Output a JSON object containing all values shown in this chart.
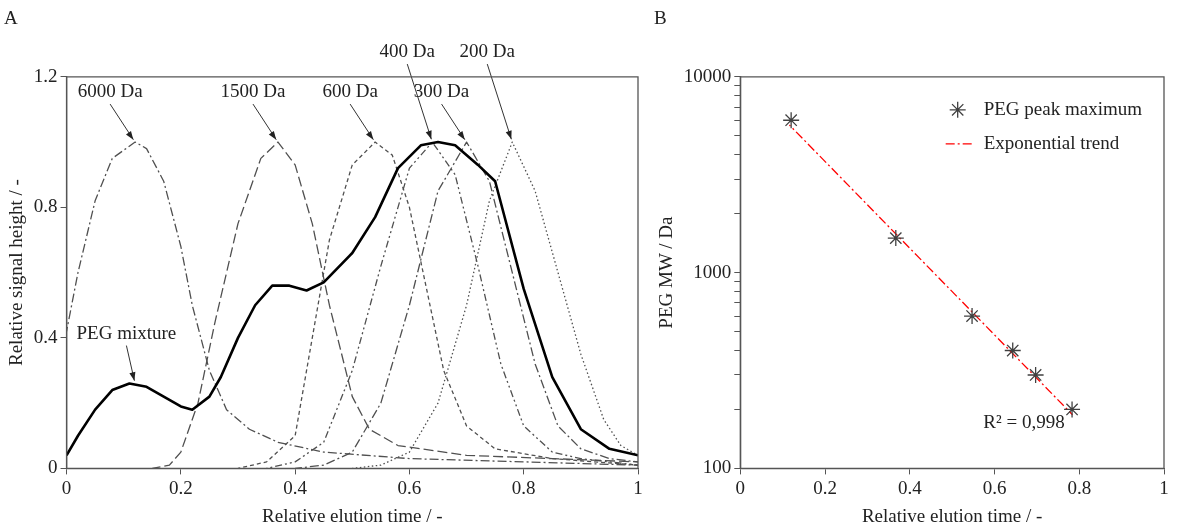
{
  "chart_data": [
    {
      "type": "line",
      "title": "A",
      "xlabel": "Relative elution time / -",
      "ylabel": "Relative signal height / -",
      "xlim": [
        0,
        1
      ],
      "xticks": [
        0,
        0.2,
        0.4,
        0.6,
        0.8,
        1
      ],
      "ylim": [
        0,
        1.2
      ],
      "yticks": [
        0,
        0.4,
        0.8,
        1.2
      ],
      "grid": false,
      "legend": false,
      "marker": "none",
      "series": [
        {
          "color": "#000000",
          "line_style": "solid",
          "x": [
            0,
            0.02,
            0.05,
            0.08,
            0.11,
            0.14,
            0.17,
            0.2,
            0.22,
            0.25,
            0.27,
            0.3,
            0.33,
            0.36,
            0.39,
            0.42,
            0.45,
            0.5,
            0.54,
            0.58,
            0.62,
            0.65,
            0.68,
            0.72,
            0.75,
            0.8,
            0.85,
            0.9,
            0.95,
            1
          ],
          "values": [
            0.04,
            0.1,
            0.18,
            0.24,
            0.26,
            0.25,
            0.22,
            0.19,
            0.18,
            0.22,
            0.28,
            0.4,
            0.5,
            0.56,
            0.56,
            0.545,
            0.57,
            0.66,
            0.77,
            0.92,
            0.99,
            1.0,
            0.99,
            0.93,
            0.88,
            0.55,
            0.28,
            0.12,
            0.06,
            0.04
          ]
        },
        {
          "color": "#505050",
          "line_style": "dashed",
          "x": [
            0,
            0.02,
            0.05,
            0.08,
            0.12,
            0.14,
            0.17,
            0.2,
            0.22,
            0.25,
            0.28,
            0.32,
            0.37,
            0.45,
            0.6,
            0.8,
            1
          ],
          "values": [
            0.42,
            0.6,
            0.82,
            0.95,
            1.0,
            0.98,
            0.88,
            0.68,
            0.5,
            0.3,
            0.18,
            0.12,
            0.08,
            0.05,
            0.03,
            0.02,
            0.01
          ]
        },
        {
          "color": "#505050",
          "line_style": "dashed",
          "x": [
            0.15,
            0.18,
            0.2,
            0.23,
            0.26,
            0.3,
            0.34,
            0.37,
            0.4,
            0.43,
            0.46,
            0.5,
            0.53,
            0.58,
            0.7,
            0.85,
            1
          ],
          "values": [
            0,
            0.01,
            0.05,
            0.2,
            0.45,
            0.75,
            0.95,
            1.0,
            0.93,
            0.75,
            0.5,
            0.22,
            0.12,
            0.07,
            0.04,
            0.03,
            0.02
          ]
        },
        {
          "color": "#505050",
          "line_style": "dashed",
          "x": [
            0.3,
            0.35,
            0.4,
            0.43,
            0.46,
            0.5,
            0.54,
            0.57,
            0.6,
            0.63,
            0.66,
            0.7,
            0.75,
            0.85,
            1
          ],
          "values": [
            0,
            0.02,
            0.1,
            0.4,
            0.7,
            0.93,
            1.0,
            0.96,
            0.8,
            0.55,
            0.3,
            0.13,
            0.06,
            0.03,
            0.01
          ]
        },
        {
          "color": "#505050",
          "line_style": "dashed",
          "x": [
            0.35,
            0.4,
            0.45,
            0.5,
            0.55,
            0.6,
            0.64,
            0.68,
            0.72,
            0.76,
            0.8,
            0.85,
            0.9,
            1
          ],
          "values": [
            0,
            0.02,
            0.08,
            0.3,
            0.62,
            0.92,
            1.0,
            0.9,
            0.62,
            0.32,
            0.13,
            0.05,
            0.03,
            0.01
          ]
        },
        {
          "color": "#505050",
          "line_style": "dashed",
          "x": [
            0.4,
            0.45,
            0.5,
            0.55,
            0.6,
            0.65,
            0.7,
            0.74,
            0.78,
            0.82,
            0.86,
            0.9,
            0.95,
            1
          ],
          "values": [
            0,
            0.01,
            0.05,
            0.2,
            0.5,
            0.85,
            1.0,
            0.88,
            0.6,
            0.32,
            0.13,
            0.06,
            0.03,
            0.02
          ]
        },
        {
          "color": "#505050",
          "line_style": "dotted",
          "x": [
            0.5,
            0.55,
            0.6,
            0.65,
            0.7,
            0.74,
            0.78,
            0.82,
            0.86,
            0.9,
            0.94,
            0.97,
            1
          ],
          "values": [
            0,
            0.01,
            0.05,
            0.2,
            0.5,
            0.82,
            1.0,
            0.85,
            0.6,
            0.35,
            0.15,
            0.07,
            0.04
          ]
        }
      ],
      "annotations": [
        {
          "text": "6000 Da",
          "x": 0.12,
          "y": 1.0
        },
        {
          "text": "1500 Da",
          "x": 0.37,
          "y": 1.0
        },
        {
          "text": "600 Da",
          "x": 0.54,
          "y": 1.0
        },
        {
          "text": "400 Da",
          "x": 0.64,
          "y": 1.0
        },
        {
          "text": "300 Da",
          "x": 0.7,
          "y": 1.0
        },
        {
          "text": "200 Da",
          "x": 0.78,
          "y": 1.0
        },
        {
          "text": "PEG mixture",
          "x": 0.12,
          "y": 0.26
        }
      ]
    },
    {
      "type": "scatter",
      "title": "B",
      "xlabel": "Relative elution time / -",
      "ylabel": "PEG MW / Da",
      "log": "y",
      "xlim": [
        0,
        1
      ],
      "xticks": [
        0,
        0.2,
        0.4,
        0.6,
        0.8,
        1
      ],
      "ylim": [
        100,
        10000
      ],
      "yticks": [
        100,
        {
          "value": 200,
          "label": null
        },
        {
          "value": 300,
          "label": null
        },
        {
          "value": 400,
          "label": null
        },
        {
          "value": 500,
          "label": null
        },
        {
          "value": 600,
          "label": null
        },
        {
          "value": 700,
          "label": null
        },
        {
          "value": 800,
          "label": null
        },
        {
          "value": 900,
          "label": null
        },
        1000,
        {
          "value": 2000,
          "label": null
        },
        {
          "value": 3000,
          "label": null
        },
        {
          "value": 4000,
          "label": null
        },
        {
          "value": 5000,
          "label": null
        },
        {
          "value": 6000,
          "label": null
        },
        {
          "value": 7000,
          "label": null
        },
        {
          "value": 8000,
          "label": null
        },
        {
          "value": 9000,
          "label": null
        },
        10000
      ],
      "grid": false,
      "legend": "top right",
      "series": [
        {
          "name": "PEG peak maximum",
          "color": "#404040",
          "marker": "cross",
          "x": [
            0.12,
            0.367,
            0.547,
            0.643,
            0.697,
            0.783
          ],
          "values": [
            6000,
            1500,
            600,
            400,
            300,
            200
          ]
        },
        {
          "name": "Exponential trend",
          "type": "line",
          "color": "#ff0000",
          "marker": "none",
          "line_style": "dashed",
          "x": [
            0.116,
            0.784
          ],
          "values": [
            5670,
            188
          ]
        }
      ],
      "annotations": [
        "R² = 0,998"
      ]
    }
  ]
}
